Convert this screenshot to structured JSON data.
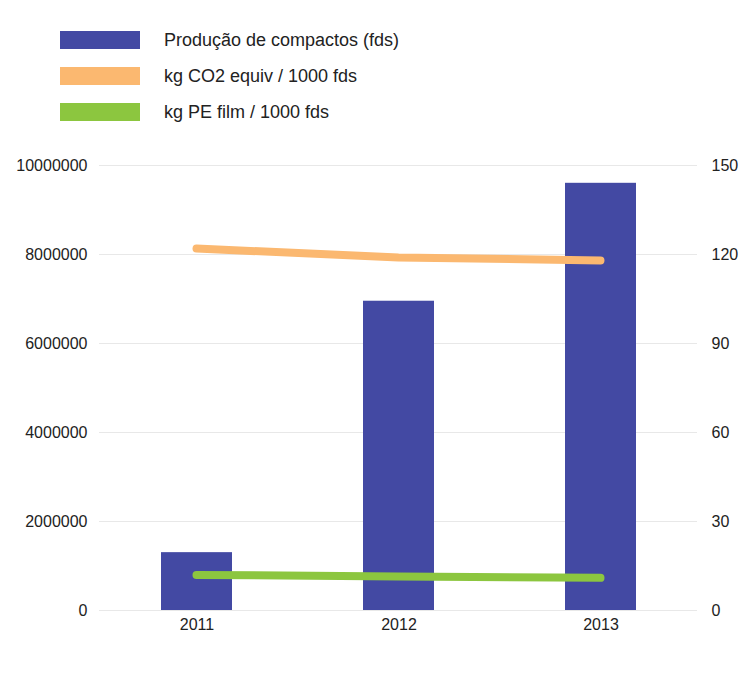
{
  "chart_data": {
    "type": "bar",
    "categories": [
      "2011",
      "2012",
      "2013"
    ],
    "series": [
      {
        "name": "Produção de compactos (fds)",
        "type": "bar",
        "color": "#4349a3",
        "values": [
          1300000,
          6950000,
          9600000
        ]
      },
      {
        "name": "kg CO2 equiv / 1000 fds",
        "type": "line",
        "color": "#fbb870",
        "axis": "y2",
        "values": [
          122,
          119,
          118
        ]
      },
      {
        "name": "kg PE film / 1000 fds",
        "type": "line",
        "color": "#8cc63f",
        "axis": "y2",
        "values": [
          12,
          11.5,
          11
        ]
      }
    ],
    "ylim": [
      0,
      10000000
    ],
    "yticks": [
      0,
      2000000,
      4000000,
      6000000,
      8000000,
      10000000
    ],
    "y2lim": [
      0,
      150
    ],
    "y2ticks": [
      0,
      30,
      60,
      90,
      120,
      150
    ],
    "grid": true,
    "legend": "top-left"
  }
}
